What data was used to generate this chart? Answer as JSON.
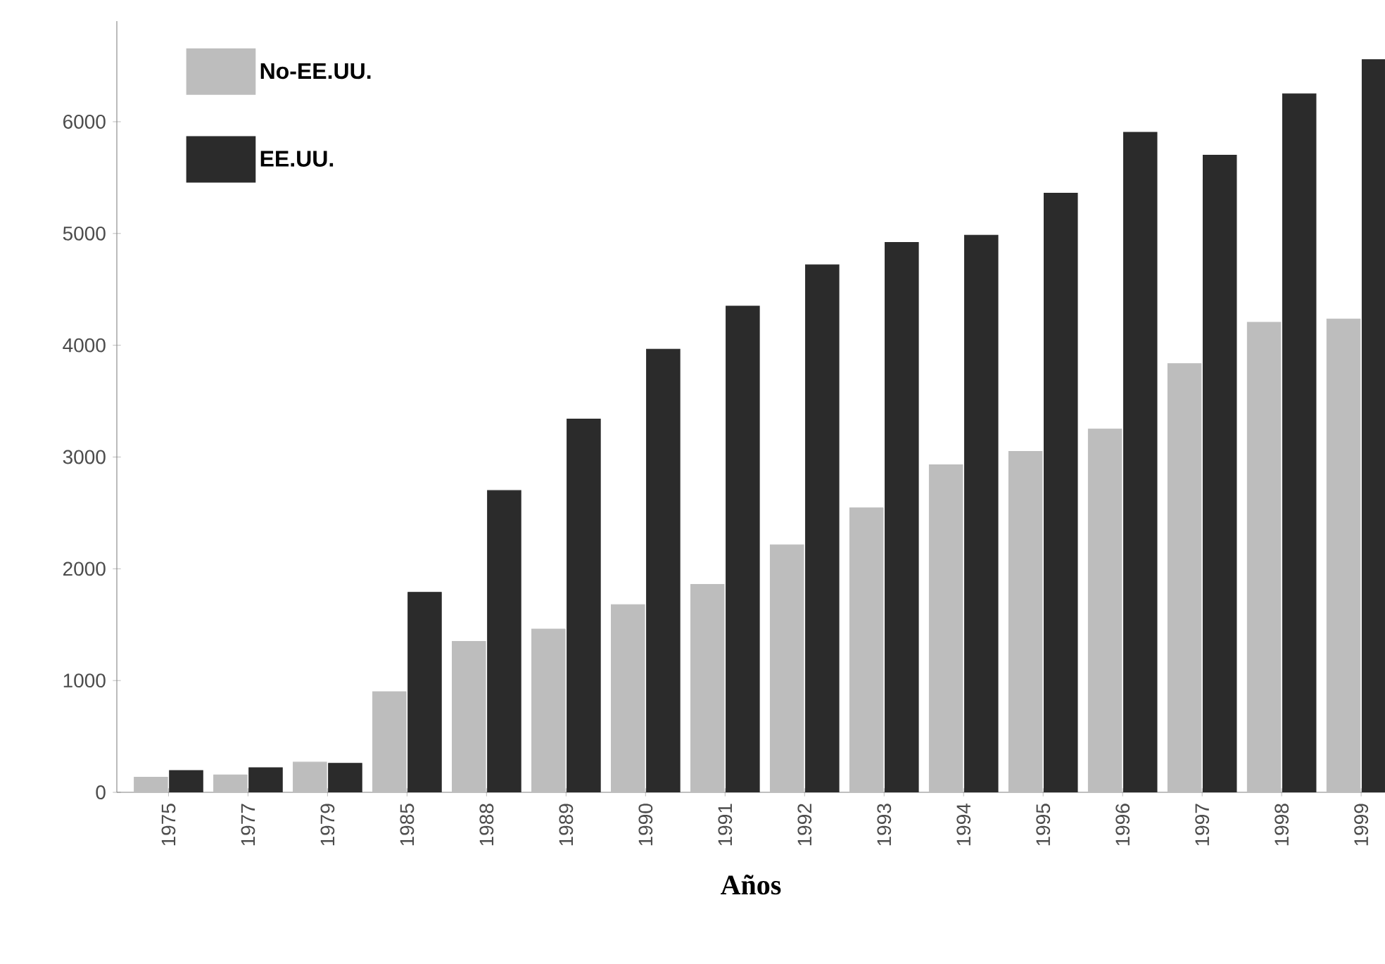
{
  "chart_data": {
    "type": "bar",
    "xlabel": "Años",
    "categories": [
      "1975",
      "1977",
      "1979",
      "1985",
      "1988",
      "1989",
      "1990",
      "1991",
      "1992",
      "1993",
      "1994",
      "1995",
      "1996",
      "1997",
      "1998",
      "1999"
    ],
    "series": [
      {
        "name": "No-EE.UU.",
        "color": "#bdbdbd",
        "values": [
          135,
          155,
          270,
          900,
          1350,
          1460,
          1680,
          1860,
          2215,
          2545,
          2930,
          3050,
          3250,
          3835,
          4205,
          4235
        ]
      },
      {
        "name": "EE.UU.",
        "color": "#2b2b2b",
        "values": [
          195,
          220,
          260,
          1790,
          2700,
          3340,
          3965,
          4350,
          4720,
          4920,
          4985,
          5360,
          5905,
          5700,
          6250,
          6555
        ]
      }
    ],
    "ylim": [
      0,
      6900
    ],
    "yticks": [
      0,
      1000,
      2000,
      3000,
      4000,
      5000,
      6000
    ],
    "legend": "top left",
    "grid": false
  }
}
